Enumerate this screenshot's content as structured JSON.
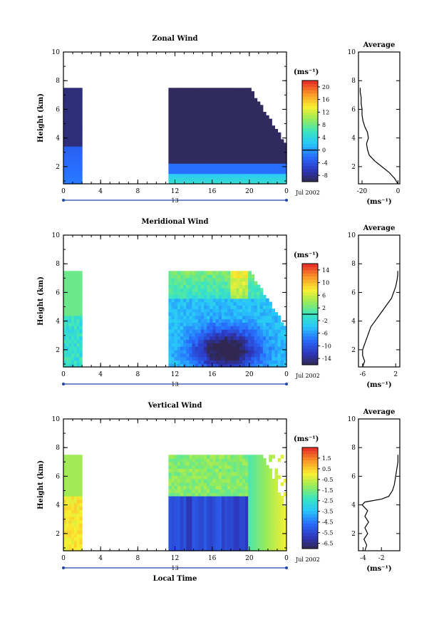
{
  "chart_data": [
    {
      "type": "heatmap",
      "title": "Zonal Wind",
      "ylabel": "Height (km)",
      "ylim": [
        0.8,
        10
      ],
      "yticks": [
        2,
        4,
        6,
        8,
        10
      ],
      "xlim": [
        0,
        24
      ],
      "xticks": [
        "0",
        "4",
        "8",
        "12",
        "16",
        "20",
        "0"
      ],
      "date_label": "13",
      "month_label": "Jul 2002",
      "colorbar": {
        "unit": "(ms⁻¹)",
        "min": -10,
        "max": 22,
        "ticks": [
          "-8",
          "-4",
          "0",
          "4",
          "8",
          "12",
          "16",
          "20"
        ],
        "tick_values": [
          -8,
          -4,
          0,
          4,
          8,
          12,
          16,
          20
        ],
        "zero_line": 0
      },
      "data_blocks": [
        {
          "x": [
            0,
            2
          ],
          "y": [
            0.8,
            7.5
          ],
          "typical": "-9 aloft, -4 to 2 below 4 km"
        },
        {
          "x": [
            11.3,
            24
          ],
          "y": [
            0.8,
            7.5
          ],
          "typical": "-10 aloft, 0 to 6 below 2 km"
        }
      ],
      "profile": {
        "title": "Average",
        "xlabel": "(ms⁻¹)",
        "xlim": [
          -22,
          1
        ],
        "xticks": [
          "-20",
          "0"
        ],
        "xtick_values": [
          -20,
          0
        ],
        "y": [
          0.8,
          1.2,
          1.6,
          2.0,
          2.4,
          2.8,
          3.2,
          3.6,
          4.0,
          4.4,
          4.8,
          5.2,
          5.6,
          6.0,
          6.4,
          6.8,
          7.2,
          7.5
        ],
        "x": [
          0,
          -2,
          -5,
          -9,
          -13,
          -16,
          -17,
          -17.5,
          -16.5,
          -17,
          -18.5,
          -19.5,
          -20,
          -20,
          -20.5,
          -20.5,
          -21,
          -21
        ]
      }
    },
    {
      "type": "heatmap",
      "title": "Meridional Wind",
      "ylabel": "Height (km)",
      "ylim": [
        0.8,
        10
      ],
      "yticks": [
        2,
        4,
        6,
        8,
        10
      ],
      "xlim": [
        0,
        24
      ],
      "xticks": [
        "0",
        "4",
        "8",
        "12",
        "16",
        "20",
        "0"
      ],
      "date_label": "13",
      "month_label": "Jul 2002",
      "colorbar": {
        "unit": "(ms⁻¹)",
        "min": -16,
        "max": 16,
        "ticks": [
          "-14",
          "-10",
          "-6",
          "-2",
          "2",
          "6",
          "10",
          "14"
        ],
        "tick_values": [
          -14,
          -10,
          -6,
          -2,
          2,
          6,
          10,
          14
        ],
        "zero_line": 0
      },
      "data_blocks": [
        {
          "x": [
            0,
            2
          ],
          "y": [
            0.8,
            7.5
          ],
          "typical": "-4 to 4"
        },
        {
          "x": [
            11.3,
            24
          ],
          "y": [
            0.8,
            7.5
          ],
          "typical": "-14 at 2 km, 10 near 7 km"
        }
      ],
      "profile": {
        "title": "Average",
        "xlabel": "(ms⁻¹)",
        "xlim": [
          -7,
          3
        ],
        "xticks": [
          "-6",
          "2"
        ],
        "xtick_values": [
          -6,
          2
        ],
        "y": [
          0.8,
          1.2,
          1.6,
          2.0,
          2.4,
          2.8,
          3.2,
          3.6,
          4.0,
          4.4,
          4.8,
          5.2,
          5.6,
          6.0,
          6.4,
          6.8,
          7.2,
          7.5
        ],
        "x": [
          -6,
          -5.5,
          -6,
          -6,
          -5.5,
          -5,
          -4.5,
          -4,
          -3,
          -2,
          -1,
          0,
          1,
          1.5,
          2,
          2.3,
          2.5,
          2.5
        ]
      }
    },
    {
      "type": "heatmap",
      "title": "Vertical Wind",
      "ylabel": "Height (km)",
      "xlabel": "Local Time",
      "ylim": [
        0.8,
        10
      ],
      "yticks": [
        2,
        4,
        6,
        8,
        10
      ],
      "xlim": [
        0,
        24
      ],
      "xticks": [
        "0",
        "4",
        "8",
        "12",
        "16",
        "20",
        "0"
      ],
      "date_label": "13",
      "month_label": "Jul 2002",
      "colorbar": {
        "unit": "(ms⁻¹)",
        "min": -7,
        "max": 2.5,
        "ticks": [
          "-6.5",
          "-5.5",
          "-4.5",
          "-3.5",
          "-2.5",
          "-1.5",
          "-0.5",
          "0.5",
          "1.5"
        ],
        "tick_values": [
          -6.5,
          -5.5,
          -4.5,
          -3.5,
          -2.5,
          -1.5,
          -0.5,
          0.5,
          1.5
        ]
      },
      "data_blocks": [
        {
          "x": [
            0,
            2
          ],
          "y": [
            0.8,
            7.5
          ],
          "typical": "0.5 below 4.5 km, -1 aloft"
        },
        {
          "x": [
            11.3,
            24
          ],
          "y": [
            0.8,
            7.5
          ],
          "typical": "-6.5 below 4.5 km, -1.5 aloft"
        }
      ],
      "profile": {
        "title": "Average",
        "xlabel": "(ms⁻¹)",
        "xlim": [
          -4.5,
          0
        ],
        "xticks": [
          "-4",
          "-2"
        ],
        "xtick_values": [
          -4,
          -2
        ],
        "y": [
          0.8,
          1.2,
          1.6,
          2.0,
          2.4,
          2.8,
          3.2,
          3.6,
          4.0,
          4.2,
          4.4,
          4.6,
          5.0,
          5.4,
          5.8,
          6.2,
          6.6,
          7.0,
          7.5
        ],
        "x": [
          -3.8,
          -3.6,
          -3.9,
          -3.5,
          -3.8,
          -3.4,
          -3.8,
          -3.5,
          -4.1,
          -3.8,
          -2.0,
          -1.2,
          -0.8,
          -0.6,
          -0.5,
          -0.4,
          -0.3,
          -0.2,
          -0.2
        ]
      }
    }
  ]
}
